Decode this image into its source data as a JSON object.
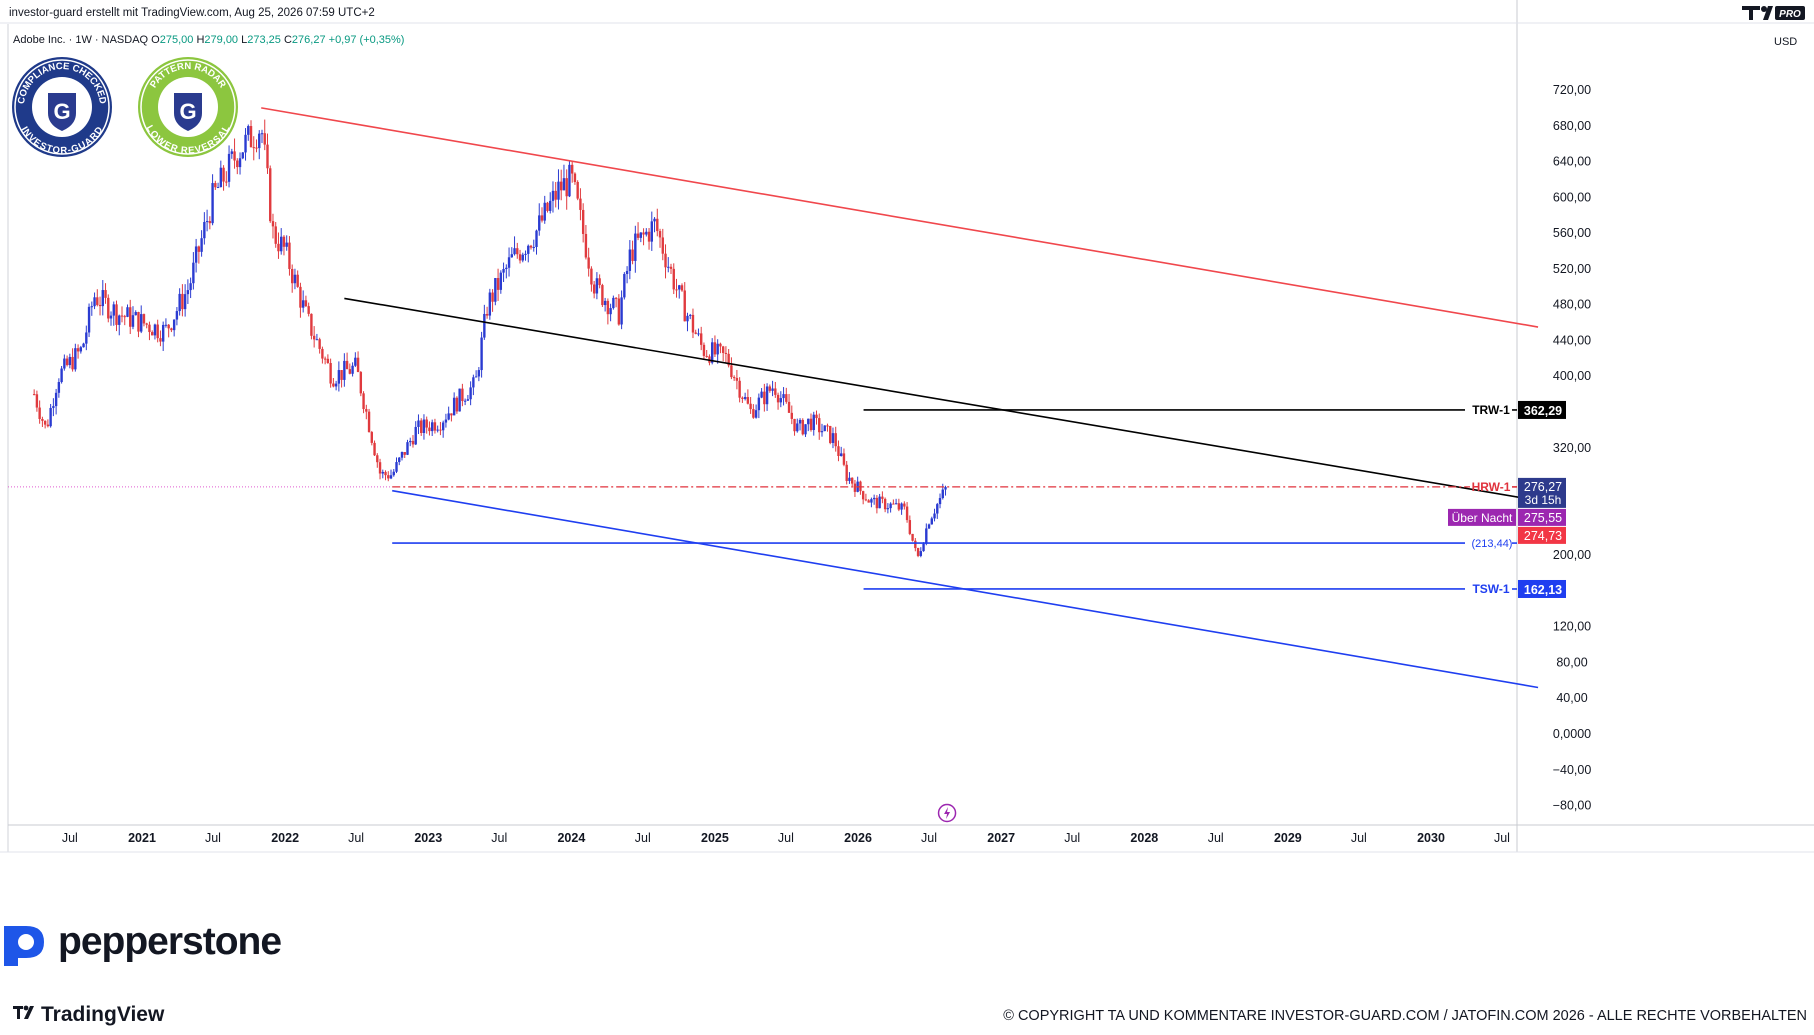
{
  "header": {
    "created_by": "investor-guard erstellt mit TradingView.com, Aug 25, 2026 07:59 UTC+2",
    "symbol_line": "Adobe Inc. · 1W · NASDAQ",
    "o_label": "O",
    "o_value": "275,00",
    "h_label": "H",
    "h_value": "279,00",
    "l_label": "L",
    "l_value": "273,25",
    "c_label": "C",
    "c_value": "276,27",
    "change": "+0,97 (+0,35%)",
    "currency": "USD"
  },
  "badges": [
    {
      "top_text": "COMPLIANCE CHECKED",
      "bottom_text": "INVESTOR-GUARD",
      "letter": "G"
    },
    {
      "top_text": "PATTERN RADAR",
      "bottom_text": "LOWER REVERSAL",
      "letter": "G"
    }
  ],
  "branding": {
    "pepperstone": "pepperstone",
    "tradingview": "TradingView",
    "tv_pro": "PRO",
    "copyright": "© COPYRIGHT TA UND KOMMENTARE INVESTOR-GUARD.COM / JATOFIN.COM 2026 - ALLE RECHTE VORBEHALTEN"
  },
  "colors": {
    "up": "#2a3bd1",
    "down": "#e03a3e",
    "channel_top": "#f0474c",
    "channel_mid": "#000000",
    "channel_bottom": "#1f3ef0",
    "hrw": "#e0323c",
    "purple": "#9c27b0"
  },
  "chart_data": {
    "type": "candlestick",
    "title": "Adobe Inc. · 1W · NASDAQ",
    "ylim": [
      -100,
      780
    ],
    "y_ticks": [
      720,
      680,
      640,
      600,
      560,
      520,
      480,
      440,
      400,
      320,
      200,
      120,
      80,
      40,
      0,
      -40,
      -80
    ],
    "y_tick_labels": [
      "720,00",
      "680,00",
      "640,00",
      "600,00",
      "560,00",
      "520,00",
      "480,00",
      "440,00",
      "400,00",
      "320,00",
      "200,00",
      "120,00",
      "80,00",
      "40,00",
      "0,0000",
      "−40,00",
      "−80,00"
    ],
    "x_ticks": [
      {
        "date": "2020-07-01",
        "label": "Jul"
      },
      {
        "date": "2021-01-01",
        "label": "2021",
        "bold": true
      },
      {
        "date": "2021-07-01",
        "label": "Jul"
      },
      {
        "date": "2022-01-01",
        "label": "2022",
        "bold": true
      },
      {
        "date": "2022-07-01",
        "label": "Jul"
      },
      {
        "date": "2023-01-01",
        "label": "2023",
        "bold": true
      },
      {
        "date": "2023-07-01",
        "label": "Jul"
      },
      {
        "date": "2024-01-01",
        "label": "2024",
        "bold": true
      },
      {
        "date": "2024-07-01",
        "label": "Jul"
      },
      {
        "date": "2025-01-01",
        "label": "2025",
        "bold": true
      },
      {
        "date": "2025-07-01",
        "label": "Jul"
      },
      {
        "date": "2026-01-01",
        "label": "2026",
        "bold": true
      },
      {
        "date": "2026-07-01",
        "label": "Jul"
      },
      {
        "date": "2027-01-01",
        "label": "2027",
        "bold": true
      },
      {
        "date": "2027-07-01",
        "label": "Jul"
      },
      {
        "date": "2028-01-01",
        "label": "2028",
        "bold": true
      },
      {
        "date": "2028-07-01",
        "label": "Jul"
      },
      {
        "date": "2029-01-01",
        "label": "2029",
        "bold": true
      },
      {
        "date": "2029-07-01",
        "label": "Jul"
      },
      {
        "date": "2030-01-01",
        "label": "2030",
        "bold": true
      },
      {
        "date": "2030-07-01",
        "label": "Jul"
      }
    ],
    "price_path": [
      [
        "2020-04-01",
        380
      ],
      [
        "2020-05-01",
        340
      ],
      [
        "2020-06-01",
        400
      ],
      [
        "2020-08-01",
        430
      ],
      [
        "2020-09-01",
        490
      ],
      [
        "2020-11-01",
        470
      ],
      [
        "2021-01-01",
        460
      ],
      [
        "2021-03-01",
        450
      ],
      [
        "2021-05-01",
        500
      ],
      [
        "2021-07-01",
        600
      ],
      [
        "2021-09-01",
        650
      ],
      [
        "2021-11-01",
        680
      ],
      [
        "2021-12-01",
        560
      ],
      [
        "2022-01-01",
        540
      ],
      [
        "2022-03-01",
        460
      ],
      [
        "2022-05-01",
        400
      ],
      [
        "2022-07-01",
        410
      ],
      [
        "2022-09-01",
        290
      ],
      [
        "2022-10-01",
        290
      ],
      [
        "2022-12-01",
        340
      ],
      [
        "2023-02-01",
        350
      ],
      [
        "2023-04-01",
        380
      ],
      [
        "2023-05-01",
        390
      ],
      [
        "2023-06-01",
        480
      ],
      [
        "2023-08-01",
        530
      ],
      [
        "2023-10-01",
        560
      ],
      [
        "2023-12-01",
        610
      ],
      [
        "2024-01-01",
        620
      ],
      [
        "2024-03-01",
        500
      ],
      [
        "2024-05-01",
        470
      ],
      [
        "2024-06-01",
        540
      ],
      [
        "2024-08-01",
        570
      ],
      [
        "2024-10-01",
        490
      ],
      [
        "2024-12-01",
        430
      ],
      [
        "2025-02-01",
        420
      ],
      [
        "2025-04-01",
        360
      ],
      [
        "2025-06-01",
        390
      ],
      [
        "2025-08-01",
        340
      ],
      [
        "2025-09-01",
        350
      ],
      [
        "2025-11-01",
        330
      ],
      [
        "2025-12-01",
        290
      ],
      [
        "2026-02-01",
        260
      ],
      [
        "2026-04-01",
        255
      ],
      [
        "2026-05-01",
        250
      ],
      [
        "2026-06-01",
        195
      ],
      [
        "2026-07-01",
        240
      ],
      [
        "2026-08-15",
        276
      ]
    ],
    "trend_lines": [
      {
        "name": "channel-top",
        "from": [
          "2021-11-01",
          700
        ],
        "to": [
          "2030-10-01",
          455
        ]
      },
      {
        "name": "channel-mid",
        "from": [
          "2022-06-01",
          487
        ],
        "to": [
          "2030-10-01",
          261
        ]
      },
      {
        "name": "channel-bottom",
        "from": [
          "2022-10-01",
          272
        ],
        "to": [
          "2030-10-01",
          52
        ]
      }
    ],
    "horizontal_levels": [
      {
        "name": "TRW-1",
        "label": "TRW-1",
        "value": 362.29,
        "value_label": "362,29",
        "from": "2026-01-15",
        "style": "solid",
        "color": "#000000"
      },
      {
        "name": "HRW-1",
        "label": "HRW-1",
        "value": 276.27,
        "value_label": "276,27",
        "from": "2022-10-01",
        "style": "dashdot",
        "color": "#e0323c"
      },
      {
        "name": "support",
        "label": "(213,44)",
        "value": 213.44,
        "from": "2022-10-01",
        "style": "solid",
        "color": "#1f3ef0"
      },
      {
        "name": "TSW-1",
        "label": "TSW-1",
        "value": 162.13,
        "value_label": "162,13",
        "from": "2026-01-15",
        "style": "solid",
        "color": "#1f3ef0"
      }
    ],
    "price_tags": [
      {
        "label": "276,27",
        "sublabel": "3d 15h",
        "value": 276.27,
        "color": "#2d3a8c"
      },
      {
        "label": "275,55",
        "value": 275.55,
        "color": "#9c27b0",
        "note": "Über Nacht"
      },
      {
        "label": "274,73",
        "value": 274.73,
        "color": "#f23645"
      }
    ],
    "last_price_dotted": 276.27
  }
}
